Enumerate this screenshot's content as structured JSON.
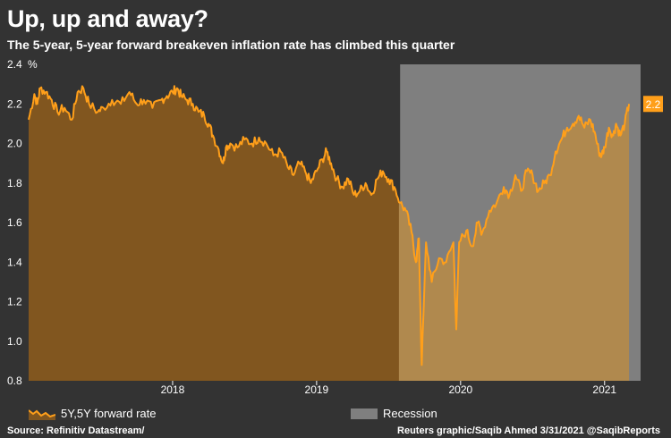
{
  "header": {
    "title": "Up, up and away?",
    "subtitle": "The 5-year, 5-year forward breakeven inflation rate has climbed this quarter"
  },
  "colors": {
    "background": "#333333",
    "line": "#ff9f1a",
    "area_before": "#81561f",
    "area_after": "#b0894e",
    "recession": "#7f7f7f",
    "end_label_bg": "#ff9f1a"
  },
  "chart_data": {
    "type": "area",
    "title": "Up, up and away?",
    "subtitle": "The 5-year, 5-year forward breakeven inflation rate has climbed this quarter",
    "ylabel": "%",
    "xlabel": "",
    "ylim": [
      0.8,
      2.4
    ],
    "yticks": [
      "0.8",
      "1.0",
      "1.2",
      "1.4",
      "1.6",
      "1.8",
      "2.0",
      "2.2",
      "2.4"
    ],
    "x_range": [
      2017.0,
      2021.25
    ],
    "xticks": [
      {
        "label": "2018",
        "pos": 2018.0
      },
      {
        "label": "2019",
        "pos": 2019.0
      },
      {
        "label": "2020",
        "pos": 2020.0
      },
      {
        "label": "2021",
        "pos": 2021.0
      }
    ],
    "recession": {
      "label": "Recession",
      "start": 2019.58,
      "end": 2021.25
    },
    "series": [
      {
        "name": "5Y,5Y forward rate",
        "points": [
          [
            2017.0,
            2.12
          ],
          [
            2017.04,
            2.25
          ],
          [
            2017.06,
            2.2
          ],
          [
            2017.08,
            2.28
          ],
          [
            2017.12,
            2.26
          ],
          [
            2017.16,
            2.22
          ],
          [
            2017.2,
            2.16
          ],
          [
            2017.25,
            2.18
          ],
          [
            2017.3,
            2.12
          ],
          [
            2017.34,
            2.26
          ],
          [
            2017.38,
            2.28
          ],
          [
            2017.42,
            2.2
          ],
          [
            2017.48,
            2.16
          ],
          [
            2017.52,
            2.18
          ],
          [
            2017.58,
            2.22
          ],
          [
            2017.64,
            2.2
          ],
          [
            2017.7,
            2.26
          ],
          [
            2017.75,
            2.2
          ],
          [
            2017.8,
            2.22
          ],
          [
            2017.86,
            2.18
          ],
          [
            2017.92,
            2.22
          ],
          [
            2017.96,
            2.24
          ],
          [
            2018.0,
            2.26
          ],
          [
            2018.03,
            2.28
          ],
          [
            2018.06,
            2.24
          ],
          [
            2018.1,
            2.22
          ],
          [
            2018.14,
            2.2
          ],
          [
            2018.18,
            2.16
          ],
          [
            2018.22,
            2.14
          ],
          [
            2018.25,
            2.1
          ],
          [
            2018.28,
            2.04
          ],
          [
            2018.32,
            1.97
          ],
          [
            2018.35,
            1.9
          ],
          [
            2018.37,
            1.98
          ],
          [
            2018.4,
            2.0
          ],
          [
            2018.45,
            1.98
          ],
          [
            2018.5,
            2.02
          ],
          [
            2018.55,
            2.0
          ],
          [
            2018.6,
            2.03
          ],
          [
            2018.65,
            2.0
          ],
          [
            2018.7,
            1.94
          ],
          [
            2018.75,
            1.96
          ],
          [
            2018.8,
            1.88
          ],
          [
            2018.84,
            1.84
          ],
          [
            2018.88,
            1.9
          ],
          [
            2018.92,
            1.86
          ],
          [
            2018.96,
            1.8
          ],
          [
            2019.0,
            1.86
          ],
          [
            2019.04,
            1.92
          ],
          [
            2019.07,
            1.96
          ],
          [
            2019.1,
            1.9
          ],
          [
            2019.14,
            1.82
          ],
          [
            2019.18,
            1.78
          ],
          [
            2019.22,
            1.82
          ],
          [
            2019.26,
            1.74
          ],
          [
            2019.3,
            1.76
          ],
          [
            2019.34,
            1.8
          ],
          [
            2019.38,
            1.74
          ],
          [
            2019.42,
            1.82
          ],
          [
            2019.46,
            1.86
          ],
          [
            2019.5,
            1.82
          ],
          [
            2019.54,
            1.78
          ],
          [
            2019.58,
            1.7
          ],
          [
            2019.62,
            1.66
          ],
          [
            2019.66,
            1.55
          ],
          [
            2019.69,
            1.4
          ],
          [
            2019.71,
            1.52
          ],
          [
            2019.73,
            0.88
          ],
          [
            2019.76,
            1.5
          ],
          [
            2019.8,
            1.3
          ],
          [
            2019.85,
            1.42
          ],
          [
            2019.9,
            1.4
          ],
          [
            2019.95,
            1.5
          ],
          [
            2019.97,
            1.06
          ],
          [
            2019.99,
            1.5
          ],
          [
            2020.04,
            1.56
          ],
          [
            2020.08,
            1.48
          ],
          [
            2020.12,
            1.6
          ],
          [
            2020.15,
            1.55
          ],
          [
            2020.2,
            1.66
          ],
          [
            2020.25,
            1.7
          ],
          [
            2020.3,
            1.78
          ],
          [
            2020.34,
            1.74
          ],
          [
            2020.38,
            1.84
          ],
          [
            2020.42,
            1.76
          ],
          [
            2020.46,
            1.86
          ],
          [
            2020.5,
            1.84
          ],
          [
            2020.54,
            1.76
          ],
          [
            2020.58,
            1.8
          ],
          [
            2020.62,
            1.84
          ],
          [
            2020.66,
            1.96
          ],
          [
            2020.7,
            2.02
          ],
          [
            2020.74,
            2.08
          ],
          [
            2020.78,
            2.1
          ],
          [
            2020.82,
            2.14
          ],
          [
            2020.86,
            2.08
          ],
          [
            2020.9,
            2.12
          ],
          [
            2020.93,
            2.06
          ],
          [
            2020.96,
            1.96
          ],
          [
            2020.98,
            1.94
          ],
          [
            2021.0,
            1.98
          ],
          [
            2021.03,
            2.08
          ],
          [
            2021.06,
            2.04
          ],
          [
            2021.08,
            2.1
          ],
          [
            2021.11,
            2.04
          ],
          [
            2021.14,
            2.1
          ],
          [
            2021.17,
            2.2
          ]
        ],
        "end_label": "2.2"
      }
    ]
  },
  "legend": {
    "line_label": "5Y,5Y forward rate",
    "recession_label": "Recession"
  },
  "footer": {
    "source": "Source: Refinitiv Datastream/",
    "credit": "Reuters graphic/Saqib Ahmed 3/31/2021 @SaqibReports"
  }
}
